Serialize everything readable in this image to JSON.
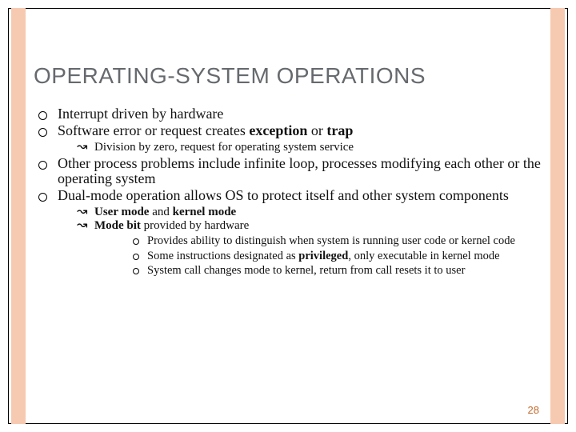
{
  "colors": {
    "stripe": "#f6cab0",
    "title_color": "#666a6e",
    "pagenum_color": "#c26a2e"
  },
  "title": "OPERATING-SYSTEM OPERATIONS",
  "page_number": "28",
  "b1": "Interrupt driven by hardware",
  "b2_a": "Software error or request creates ",
  "b2_b": "exception",
  "b2_c": " or ",
  "b2_d": "trap",
  "b2_1": "Division by zero, request for operating system service",
  "b3": "Other process problems include infinite loop, processes modifying each other or the operating system",
  "b4": "Dual-mode operation allows OS to protect itself and other system components",
  "b4_1_a": "User mode",
  "b4_1_b": " and ",
  "b4_1_c": "kernel mode",
  "b4_2_a": "Mode bit",
  "b4_2_b": " provided by hardware",
  "b4_2_i": "Provides ability to distinguish when system is running user code or kernel code",
  "b4_2_ii_a": "Some instructions designated as ",
  "b4_2_ii_b": "privileged",
  "b4_2_ii_c": ", only executable in kernel mode",
  "b4_2_iii": "System call changes mode to kernel, return from call resets it to user"
}
